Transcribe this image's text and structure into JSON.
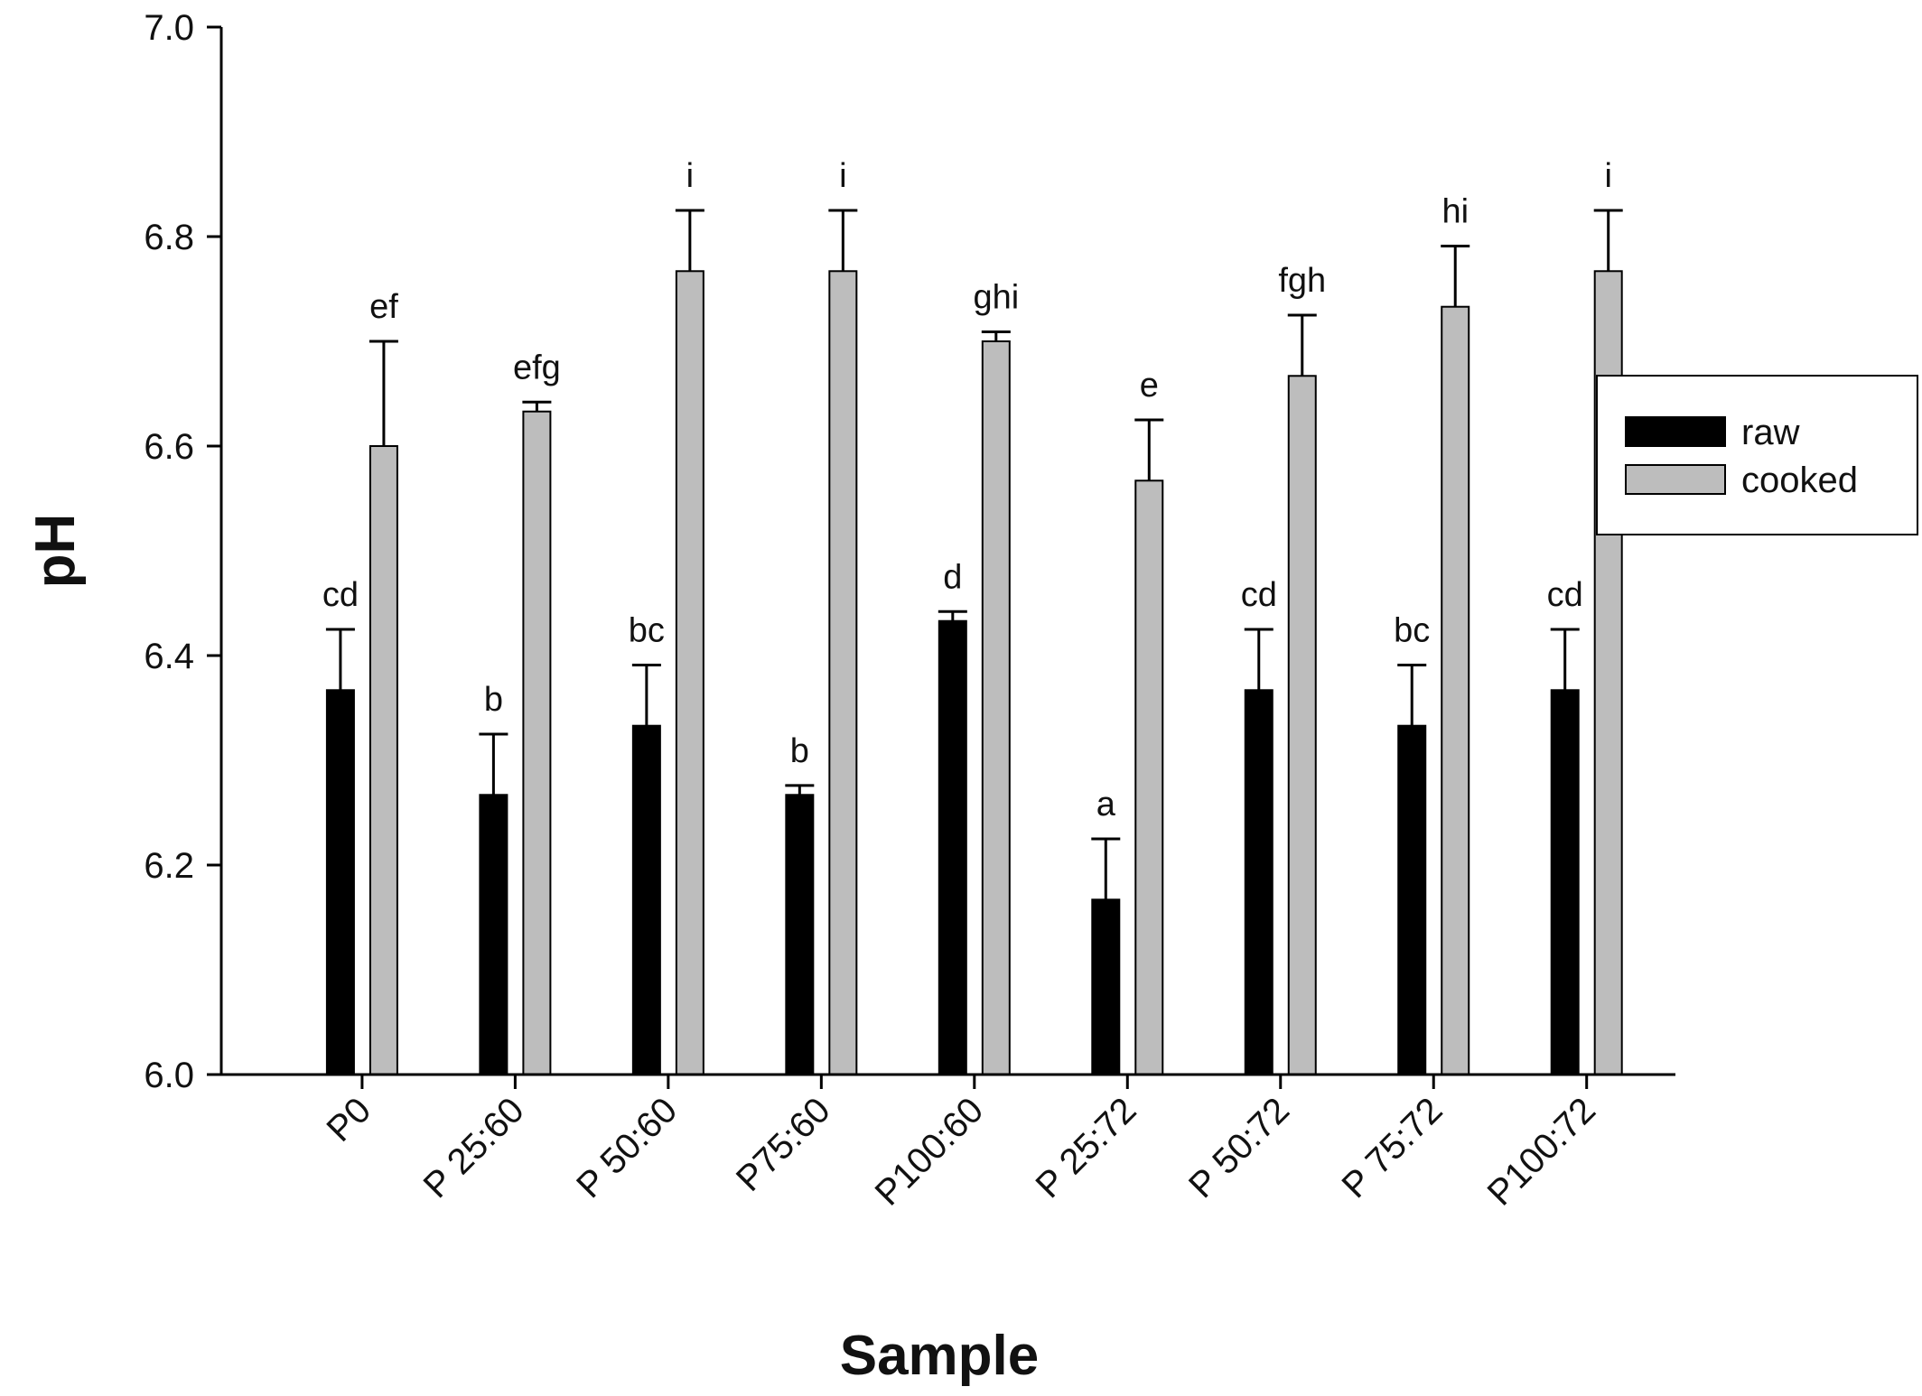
{
  "chart_data": {
    "type": "bar",
    "xlabel": "Sample",
    "ylabel": "pH",
    "ylim": [
      6.0,
      7.0
    ],
    "yticks": [
      "6.0",
      "6.2",
      "6.4",
      "6.6",
      "6.8",
      "7.0"
    ],
    "grid": false,
    "legend_position": "right",
    "categories": [
      "P0",
      "P 25:60",
      "P 50:60",
      "P75:60",
      "P100:60",
      "P 25:72",
      "P 50:72",
      "P 75:72",
      "P100:72"
    ],
    "series": [
      {
        "name": "raw",
        "color": "#000000",
        "values": [
          6.367,
          6.267,
          6.333,
          6.267,
          6.433,
          6.167,
          6.367,
          6.333,
          6.367
        ],
        "errors": [
          0.058,
          0.058,
          0.058,
          0.009,
          0.009,
          0.058,
          0.058,
          0.058,
          0.058
        ],
        "labels": [
          "cd",
          "b",
          "bc",
          "b",
          "d",
          "a",
          "cd",
          "bc",
          "cd"
        ]
      },
      {
        "name": "cooked",
        "color": "#bdbdbd",
        "values": [
          6.6,
          6.633,
          6.767,
          6.767,
          6.7,
          6.567,
          6.667,
          6.733,
          6.767
        ],
        "errors": [
          0.1,
          0.009,
          0.058,
          0.058,
          0.009,
          0.058,
          0.058,
          0.058,
          0.058
        ],
        "labels": [
          "ef",
          "efg",
          "i",
          "i",
          "ghi",
          "e",
          "fgh",
          "hi",
          "i"
        ]
      }
    ]
  }
}
